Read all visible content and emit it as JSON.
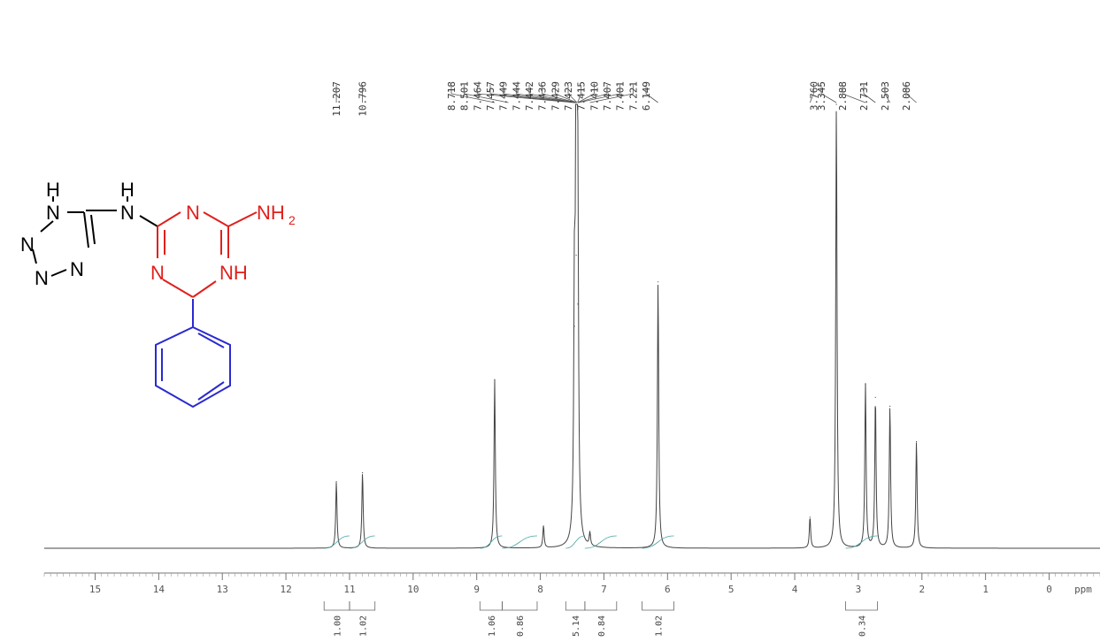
{
  "chart_data": {
    "type": "line",
    "title": "",
    "xlabel": "ppm",
    "ylabel": "",
    "x_reversed": true,
    "xlim": [
      15.8,
      -0.8
    ],
    "x_ticks": [
      15,
      14,
      13,
      12,
      11,
      10,
      9,
      8,
      7,
      6,
      5,
      4,
      3,
      2,
      1,
      0
    ],
    "grid": false,
    "series": [
      {
        "peaks": [
          {
            "ppm": 11.207,
            "height": 0.15
          },
          {
            "ppm": 10.796,
            "height": 0.17
          },
          {
            "ppm": 8.718,
            "height": 0.38
          },
          {
            "ppm": 7.95,
            "height": 0.05
          },
          {
            "ppm": 7.464,
            "height": 0.5
          },
          {
            "ppm": 7.436,
            "height": 0.66
          },
          {
            "ppm": 7.429,
            "height": 1.0
          },
          {
            "ppm": 7.41,
            "height": 0.55
          },
          {
            "ppm": 7.221,
            "height": 0.03
          },
          {
            "ppm": 6.149,
            "height": 0.6
          },
          {
            "ppm": 3.76,
            "height": 0.07
          },
          {
            "ppm": 3.345,
            "height": 1.0
          },
          {
            "ppm": 2.888,
            "height": 0.37
          },
          {
            "ppm": 2.731,
            "height": 0.34
          },
          {
            "ppm": 2.503,
            "height": 0.32
          },
          {
            "ppm": 2.086,
            "height": 0.24
          }
        ]
      }
    ],
    "peak_labels": [
      {
        "text": "11.207",
        "ppm": 11.207
      },
      {
        "text": "10.796",
        "ppm": 10.796
      },
      {
        "text": "8.718",
        "ppm": 8.718
      },
      {
        "text": "8.501",
        "ppm": 8.501
      },
      {
        "text": "7.464",
        "ppm": 7.464
      },
      {
        "text": "7.457",
        "ppm": 7.457
      },
      {
        "text": "7.449",
        "ppm": 7.449
      },
      {
        "text": "7.444",
        "ppm": 7.444
      },
      {
        "text": "7.442",
        "ppm": 7.442
      },
      {
        "text": "7.436",
        "ppm": 7.436
      },
      {
        "text": "7.429",
        "ppm": 7.429
      },
      {
        "text": "7.423",
        "ppm": 7.423
      },
      {
        "text": "7.415",
        "ppm": 7.415
      },
      {
        "text": "7.410",
        "ppm": 7.41
      },
      {
        "text": "7.407",
        "ppm": 7.407
      },
      {
        "text": "7.401",
        "ppm": 7.401
      },
      {
        "text": "7.221",
        "ppm": 7.221
      },
      {
        "text": "6.149",
        "ppm": 6.149
      },
      {
        "text": "3.760",
        "ppm": 3.76
      },
      {
        "text": "3.345",
        "ppm": 3.345
      },
      {
        "text": "2.888",
        "ppm": 2.888
      },
      {
        "text": "2.731",
        "ppm": 2.731
      },
      {
        "text": "2.503",
        "ppm": 2.503
      },
      {
        "text": "2.086",
        "ppm": 2.086
      }
    ],
    "integrals": [
      {
        "value": "1.00",
        "from": 11.4,
        "to": 11.0
      },
      {
        "value": "1.02",
        "from": 11.0,
        "to": 10.6
      },
      {
        "value": "1.06",
        "from": 8.95,
        "to": 8.6
      },
      {
        "value": "0.86",
        "from": 8.6,
        "to": 8.05
      },
      {
        "value": "5.14",
        "from": 7.6,
        "to": 7.3
      },
      {
        "value": "0.84",
        "from": 7.3,
        "to": 6.8
      },
      {
        "value": "1.02",
        "from": 6.4,
        "to": 5.9
      },
      {
        "value": "0.34",
        "from": 3.2,
        "to": 2.7
      }
    ]
  },
  "molecule": {
    "atoms": [
      {
        "text": "H",
        "color": "#000000"
      },
      {
        "text": "N",
        "color": "#000000"
      },
      {
        "text": "H",
        "color": "#000000"
      },
      {
        "text": "N",
        "color": "#000000"
      },
      {
        "text": "N",
        "color": "#000000"
      },
      {
        "text": "N",
        "color": "#000000"
      },
      {
        "text": "N",
        "color": "#000000"
      },
      {
        "text": "N",
        "color": "#e0201b"
      },
      {
        "text": "NH",
        "color": "#e0201b"
      },
      {
        "text": "2",
        "color": "#e0201b"
      },
      {
        "text": "N",
        "color": "#e0201b"
      },
      {
        "text": "NH",
        "color": "#e0201b"
      }
    ],
    "colors": {
      "tetrazole": "#000000",
      "triazine": "#e0201b",
      "phenyl": "#2a2ad0"
    }
  }
}
